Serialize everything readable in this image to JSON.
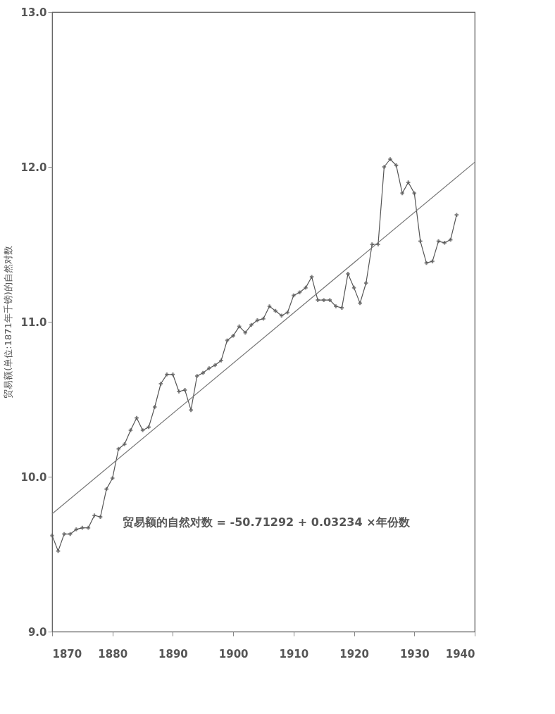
{
  "chart_data": {
    "type": "line",
    "ylabel": "贸易额(单位:1871年千镑)的自然对数",
    "xlim": [
      1870,
      1940
    ],
    "xticks": [
      1870,
      1880,
      1890,
      1900,
      1910,
      1920,
      1930,
      1940
    ],
    "ylim": [
      9.0,
      13.0
    ],
    "yticks": [
      {
        "value": 9,
        "label": "9.0"
      },
      {
        "value": 10,
        "label": "10.0"
      },
      {
        "value": 11,
        "label": "11.0"
      },
      {
        "value": 12,
        "label": "12.0"
      },
      {
        "value": 13,
        "label": "13.0"
      }
    ],
    "grid": false,
    "annotations": [
      "贸易额的自然对数 = -50.71292 + 0.03234 ×年份数"
    ],
    "series": [
      {
        "marker": "cross",
        "color": "#555555",
        "x": [
          1870,
          1871,
          1872,
          1873,
          1874,
          1875,
          1876,
          1877,
          1878,
          1879,
          1880,
          1881,
          1882,
          1883,
          1884,
          1885,
          1886,
          1887,
          1888,
          1889,
          1890,
          1891,
          1892,
          1893,
          1894,
          1895,
          1896,
          1897,
          1898,
          1899,
          1900,
          1901,
          1902,
          1903,
          1904,
          1905,
          1906,
          1907,
          1908,
          1909,
          1910,
          1911,
          1912,
          1913,
          1914,
          1915,
          1916,
          1917,
          1918,
          1919,
          1920,
          1921,
          1922,
          1923,
          1924,
          1925,
          1926,
          1927,
          1928,
          1929,
          1930,
          1931,
          1932,
          1933,
          1934,
          1935,
          1936,
          1937
        ],
        "values": [
          9.62,
          9.52,
          9.63,
          9.63,
          9.66,
          9.67,
          9.67,
          9.75,
          9.74,
          9.92,
          9.99,
          10.18,
          10.21,
          10.3,
          10.38,
          10.3,
          10.32,
          10.45,
          10.6,
          10.66,
          10.66,
          10.55,
          10.56,
          10.43,
          10.65,
          10.67,
          10.7,
          10.72,
          10.75,
          10.88,
          10.91,
          10.97,
          10.93,
          10.98,
          11.01,
          11.02,
          11.1,
          11.07,
          11.04,
          11.06,
          11.17,
          11.19,
          11.22,
          11.29,
          11.14,
          11.14,
          11.14,
          11.1,
          11.09,
          11.31,
          11.22,
          11.12,
          11.25,
          11.5,
          11.5,
          12.0,
          12.05,
          12.01,
          11.83,
          11.9,
          11.83,
          11.52,
          11.38,
          11.39,
          11.52,
          11.51,
          11.53,
          11.69
        ]
      },
      {
        "marker": "none",
        "color": "#777777",
        "x": [
          1870,
          1940
        ],
        "values": [
          9.76,
          12.03
        ]
      }
    ]
  }
}
